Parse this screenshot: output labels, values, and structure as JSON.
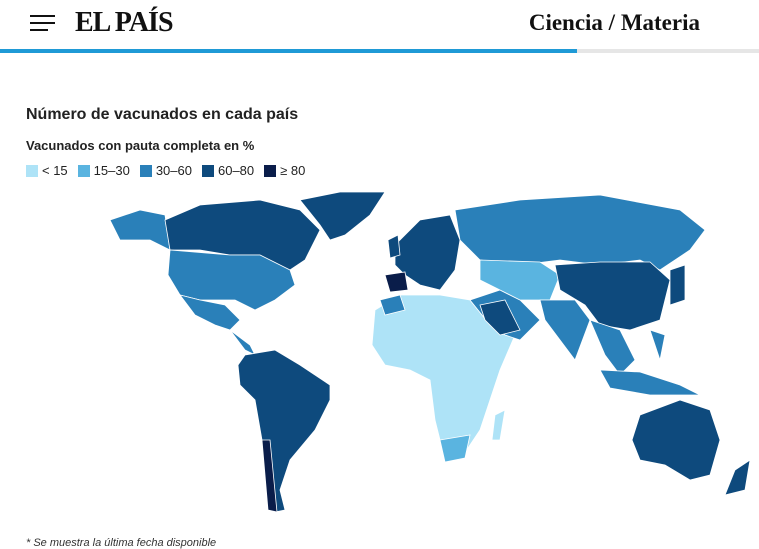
{
  "header": {
    "logo": "EL PAÍS",
    "section": "Ciencia / Materia"
  },
  "title": "Número de vacunados en cada país",
  "subtitle": "Vacunados con pauta completa en %",
  "legend": [
    {
      "label": "< 15",
      "color": "#aee3f7"
    },
    {
      "label": "15–30",
      "color": "#5ab4e0"
    },
    {
      "label": "30–60",
      "color": "#2a80b9"
    },
    {
      "label": "60–80",
      "color": "#0e4a7d"
    },
    {
      "label": "≥ 80",
      "color": "#0a1d4a"
    }
  ],
  "footnote": "* Se muestra la última fecha disponible"
}
